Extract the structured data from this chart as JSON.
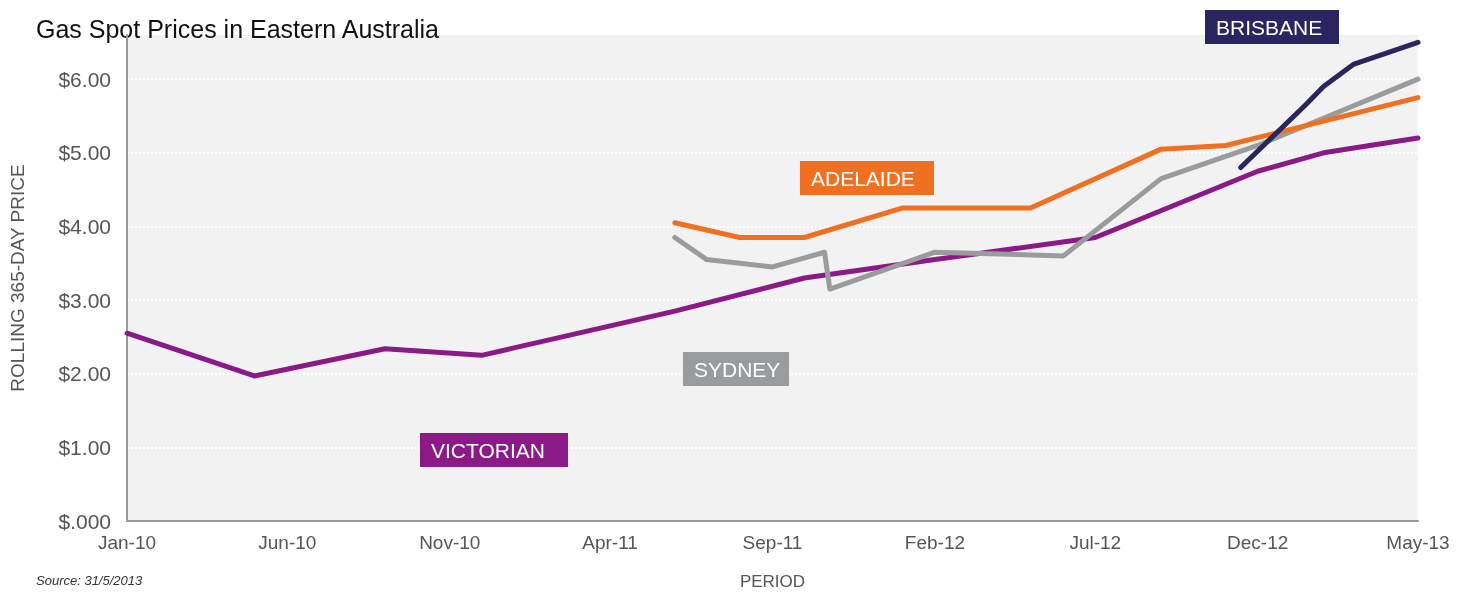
{
  "chart_data": {
    "type": "line",
    "title": "Gas Spot Prices in Eastern Australia",
    "xlabel": "PERIOD",
    "ylabel": "ROLLING 365-DAY PRICE",
    "annotations": [
      "Source: 31/5/2013"
    ],
    "xlim": [
      "2010-01",
      "2013-05"
    ],
    "xticks": [
      {
        "value": "2010-01",
        "label": "Jan-10"
      },
      {
        "value": "2010-06",
        "label": "Jun-10"
      },
      {
        "value": "2010-11",
        "label": "Nov-10"
      },
      {
        "value": "2011-04",
        "label": "Apr-11"
      },
      {
        "value": "2011-09",
        "label": "Sep-11"
      },
      {
        "value": "2012-02",
        "label": "Feb-12"
      },
      {
        "value": "2012-07",
        "label": "Jul-12"
      },
      {
        "value": "2012-12",
        "label": "Dec-12"
      },
      {
        "value": "2013-05",
        "label": "May-13"
      }
    ],
    "ylim": [
      0,
      6.6
    ],
    "yticks": [
      {
        "value": 0,
        "label": "$.000"
      },
      {
        "value": 1,
        "label": "$1.00"
      },
      {
        "value": 2,
        "label": "$2.00"
      },
      {
        "value": 3,
        "label": "$3.00"
      },
      {
        "value": 4,
        "label": "$4.00"
      },
      {
        "value": 5,
        "label": "$5.00"
      },
      {
        "value": 6,
        "label": "$6.00"
      }
    ],
    "grid": "y",
    "legend": false,
    "marker": "none",
    "line_style": "solid",
    "series": [
      {
        "name": "VICTORIAN",
        "color": "#8b1a86",
        "x": [
          "2010-01",
          "2010-05",
          "2010-09",
          "2010-12",
          "2011-06",
          "2011-10",
          "2012-02",
          "2012-07",
          "2012-12",
          "2013-02",
          "2013-05"
        ],
        "values": [
          2.55,
          1.97,
          2.34,
          2.25,
          2.85,
          3.3,
          3.55,
          3.85,
          4.75,
          5.0,
          5.2
        ]
      },
      {
        "name": "SYDNEY",
        "color": "#9a9b9d",
        "x": [
          "2011-06",
          "2011-07",
          "2011-09",
          "2011-10-20",
          "2011-10-25",
          "2012-02",
          "2012-06",
          "2012-09",
          "2012-12",
          "2013-05"
        ],
        "values": [
          3.85,
          3.55,
          3.45,
          3.65,
          3.15,
          3.65,
          3.6,
          4.65,
          5.1,
          6.0
        ]
      },
      {
        "name": "ADELAIDE",
        "color": "#f07022",
        "x": [
          "2011-06",
          "2011-08",
          "2011-10",
          "2012-01",
          "2012-05",
          "2012-09",
          "2012-11",
          "2013-05"
        ],
        "values": [
          4.05,
          3.85,
          3.85,
          4.25,
          4.25,
          5.05,
          5.1,
          5.75
        ]
      },
      {
        "name": "BRISBANE",
        "color": "#2a2560",
        "x": [
          "2012-11-15",
          "2013-01-15",
          "2013-02",
          "2013-03",
          "2013-05"
        ],
        "values": [
          4.8,
          5.65,
          5.9,
          6.2,
          6.5
        ]
      }
    ]
  }
}
